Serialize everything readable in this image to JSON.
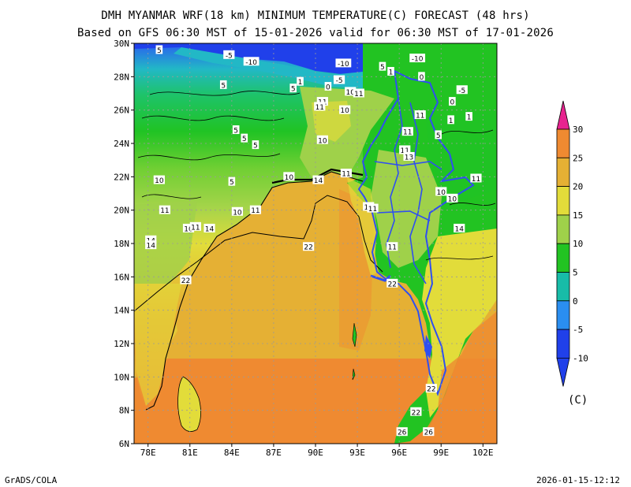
{
  "header": {
    "title_line1": "DMH MYANMAR WRF(18 km) MINIMUM TEMPERATURE(C) FORECAST (48 hrs)",
    "title_line2": "Based on GFS 06:30 MST of 15-01-2026 valid for 06:30 MST of 17-01-2026"
  },
  "footer": {
    "left": "GrADS/COLA",
    "right": "2026-01-15-12:12"
  },
  "map": {
    "lat_labels": [
      "30N",
      "28N",
      "26N",
      "24N",
      "22N",
      "20N",
      "18N",
      "16N",
      "14N",
      "12N",
      "10N",
      "8N",
      "6N"
    ],
    "lon_labels": [
      "78E",
      "81E",
      "84E",
      "87E",
      "90E",
      "93E",
      "96E",
      "99E",
      "102E"
    ],
    "contour_labels": [
      {
        "text": "5",
        "lat": 29.6,
        "lon": 78.8
      },
      {
        "text": "-5",
        "lat": 29.3,
        "lon": 83.8
      },
      {
        "text": "-10",
        "lat": 28.9,
        "lon": 85.4
      },
      {
        "text": "5",
        "lat": 27.5,
        "lon": 83.4
      },
      {
        "text": "5",
        "lat": 27.3,
        "lon": 88.4
      },
      {
        "text": "1",
        "lat": 27.7,
        "lon": 88.9
      },
      {
        "text": "-5",
        "lat": 27.8,
        "lon": 91.7
      },
      {
        "text": "0",
        "lat": 27.4,
        "lon": 90.9
      },
      {
        "text": "-10",
        "lat": 28.8,
        "lon": 92.0
      },
      {
        "text": "5",
        "lat": 28.6,
        "lon": 94.8
      },
      {
        "text": "1",
        "lat": 28.3,
        "lon": 95.4
      },
      {
        "text": "-10",
        "lat": 29.1,
        "lon": 97.3
      },
      {
        "text": "0",
        "lat": 28.0,
        "lon": 97.6
      },
      {
        "text": "-5",
        "lat": 27.2,
        "lon": 100.5
      },
      {
        "text": "0",
        "lat": 26.5,
        "lon": 99.8
      },
      {
        "text": "1",
        "lat": 25.6,
        "lon": 101.0
      },
      {
        "text": "1",
        "lat": 25.4,
        "lon": 99.7
      },
      {
        "text": "10",
        "lat": 27.1,
        "lon": 92.5
      },
      {
        "text": "11",
        "lat": 27.0,
        "lon": 93.1
      },
      {
        "text": "11",
        "lat": 26.5,
        "lon": 90.5
      },
      {
        "text": "11",
        "lat": 26.2,
        "lon": 90.3
      },
      {
        "text": "10",
        "lat": 26.0,
        "lon": 92.1
      },
      {
        "text": "11",
        "lat": 25.7,
        "lon": 97.5
      },
      {
        "text": "5",
        "lat": 24.8,
        "lon": 84.3
      },
      {
        "text": "5",
        "lat": 24.3,
        "lon": 84.9
      },
      {
        "text": "5",
        "lat": 23.9,
        "lon": 85.7
      },
      {
        "text": "10",
        "lat": 24.2,
        "lon": 90.5
      },
      {
        "text": "11",
        "lat": 24.7,
        "lon": 96.6
      },
      {
        "text": "5",
        "lat": 24.5,
        "lon": 98.8
      },
      {
        "text": "11",
        "lat": 23.6,
        "lon": 96.4
      },
      {
        "text": "13",
        "lat": 23.2,
        "lon": 96.7
      },
      {
        "text": "10",
        "lat": 21.8,
        "lon": 78.8
      },
      {
        "text": "5",
        "lat": 21.7,
        "lon": 84.0
      },
      {
        "text": "10",
        "lat": 22.0,
        "lon": 88.1
      },
      {
        "text": "14",
        "lat": 21.8,
        "lon": 90.2
      },
      {
        "text": "11",
        "lat": 22.2,
        "lon": 92.2
      },
      {
        "text": "11",
        "lat": 21.9,
        "lon": 101.5
      },
      {
        "text": "10",
        "lat": 21.1,
        "lon": 99.0
      },
      {
        "text": "10",
        "lat": 20.7,
        "lon": 99.8
      },
      {
        "text": "11",
        "lat": 20.0,
        "lon": 79.2
      },
      {
        "text": "10",
        "lat": 19.9,
        "lon": 84.4
      },
      {
        "text": "11",
        "lat": 20.0,
        "lon": 85.7
      },
      {
        "text": "10",
        "lat": 20.2,
        "lon": 93.8
      },
      {
        "text": "11",
        "lat": 20.1,
        "lon": 94.1
      },
      {
        "text": "10",
        "lat": 18.9,
        "lon": 80.9
      },
      {
        "text": "11",
        "lat": 19.0,
        "lon": 81.4
      },
      {
        "text": "14",
        "lat": 18.9,
        "lon": 82.4
      },
      {
        "text": "14",
        "lat": 18.9,
        "lon": 100.3
      },
      {
        "text": "14",
        "lat": 18.2,
        "lon": 78.2
      },
      {
        "text": "14",
        "lat": 17.9,
        "lon": 78.2
      },
      {
        "text": "22",
        "lat": 17.8,
        "lon": 89.5
      },
      {
        "text": "11",
        "lat": 17.8,
        "lon": 95.5
      },
      {
        "text": "22",
        "lat": 15.8,
        "lon": 80.7
      },
      {
        "text": "22",
        "lat": 15.6,
        "lon": 95.5
      },
      {
        "text": "22",
        "lat": 9.3,
        "lon": 98.3
      },
      {
        "text": "22",
        "lat": 7.9,
        "lon": 97.2
      },
      {
        "text": "26",
        "lat": 6.7,
        "lon": 96.2
      },
      {
        "text": "26",
        "lat": 6.7,
        "lon": 98.1
      }
    ]
  },
  "colorbar": {
    "tick_labels": [
      "30",
      "25",
      "20",
      "15",
      "10",
      "5",
      "0",
      "-5",
      "-10"
    ],
    "colors": [
      "#e7248f",
      "#ef8a31",
      "#e5b034",
      "#e2dc3a",
      "#9fd14a",
      "#22c322",
      "#18bca8",
      "#2a8ef0",
      "#2040ea"
    ],
    "unit": "(C)"
  }
}
